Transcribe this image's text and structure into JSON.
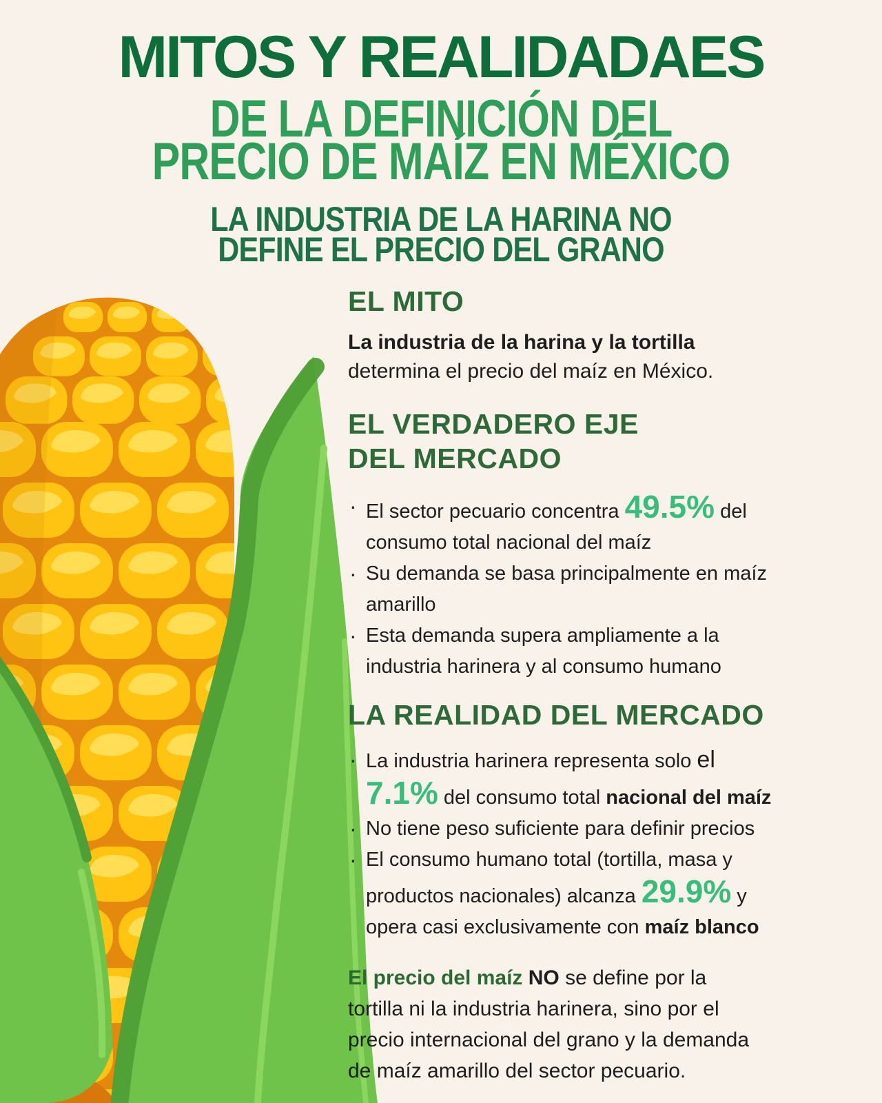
{
  "colors": {
    "background": "#F8F2EA",
    "title_green": "#0D6E3B",
    "subtitle_green": "#2F9E59",
    "tagline_green": "#1E7247",
    "heading_green": "#2D6A37",
    "stat_green": "#38BD7C",
    "footer_green": "#2B6B33",
    "text_black": "#1F1E1C",
    "corn_kernel": "#FFC412",
    "corn_leaf": "#6FC24A"
  },
  "header": {
    "title": "MITOS Y REALIDADAES",
    "subtitle_line1": "DE LA DEFINICIÓN DEL",
    "subtitle_line2": "PRECIO DE MAÍZ EN MÉXICO",
    "tagline_line1": "LA INDUSTRIA DE LA HARINA NO",
    "tagline_line2": "DEFINE EL PRECIO DEL GRANO"
  },
  "myth": {
    "heading": "EL MITO",
    "line1_bold": "La industria de la harina y la tortilla",
    "line2": "determina el precio del maíz en México."
  },
  "axis": {
    "heading_line1": "EL VERDADERO EJE",
    "heading_line2": "DEL MERCADO",
    "b1_pre": "El sector pecuario concentra ",
    "b1_stat": "49.5%",
    "b1_post": " del",
    "b1_line2": "consumo total nacional del maíz",
    "b2_line1": "Su demanda se basa principalmente en maíz",
    "b2_line2": "amarillo",
    "b3_line1": "Esta demanda supera ampliamente a la",
    "b3_line2": "industria harinera y al consumo humano"
  },
  "reality": {
    "heading": "LA REALIDAD DEL MERCADO",
    "b1_pre": "La industria harinera representa solo ",
    "b1_el": "el",
    "b1_stat": "7.1%",
    "b1_mid": " del consumo total ",
    "b1_bold": "nacional del maíz",
    "b2": "No tiene peso suficiente para definir precios",
    "b3_line1": "El consumo humano total (tortilla, masa y",
    "b3_line2_pre": "productos nacionales) alcanza ",
    "b3_stat": "29.9%",
    "b3_line2_post": " y",
    "b3_line3_pre": "opera casi exclusivamente con ",
    "b3_bold": "maíz blanco"
  },
  "footer": {
    "l1_green": "El precio del maíz ",
    "l1_no": "NO",
    "l1_rest": " se define por la",
    "l2": "tortilla ni la industria harinera, sino por el",
    "l3": "precio internacional del grano y la demanda",
    "l4": "de maíz amarillo del sector pecuario."
  }
}
